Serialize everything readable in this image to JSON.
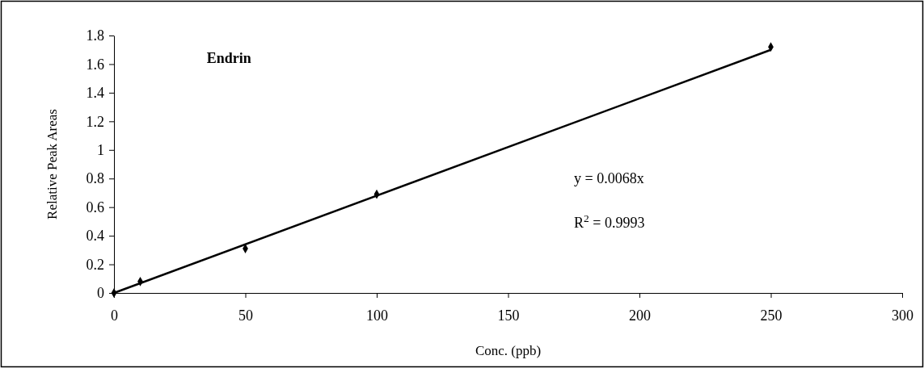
{
  "chart_data": {
    "type": "scatter",
    "title": "Endrin",
    "xlabel": "Conc. (ppb)",
    "ylabel": "Relative Peak Areas",
    "series": [
      {
        "color": "#000000",
        "marker": "diamond",
        "x": [
          0,
          10,
          50,
          100,
          250
        ],
        "values": [
          0,
          0.08,
          0.31,
          0.69,
          1.72
        ]
      },
      {
        "type": "line",
        "color": "#000000",
        "x": [
          0,
          250
        ],
        "values": [
          0,
          1.7
        ]
      }
    ],
    "xlim": [
      0,
      300
    ],
    "xticks": [
      0,
      50,
      100,
      150,
      200,
      250,
      300
    ],
    "ylim": [
      0,
      1.8
    ],
    "yticks": [
      0,
      0.2,
      0.4,
      0.6,
      0.8,
      1,
      1.2,
      1.4,
      1.6,
      1.8
    ],
    "annotations": [
      "y = 0.0068x",
      "R$^{2}$ = 0.9993"
    ]
  }
}
